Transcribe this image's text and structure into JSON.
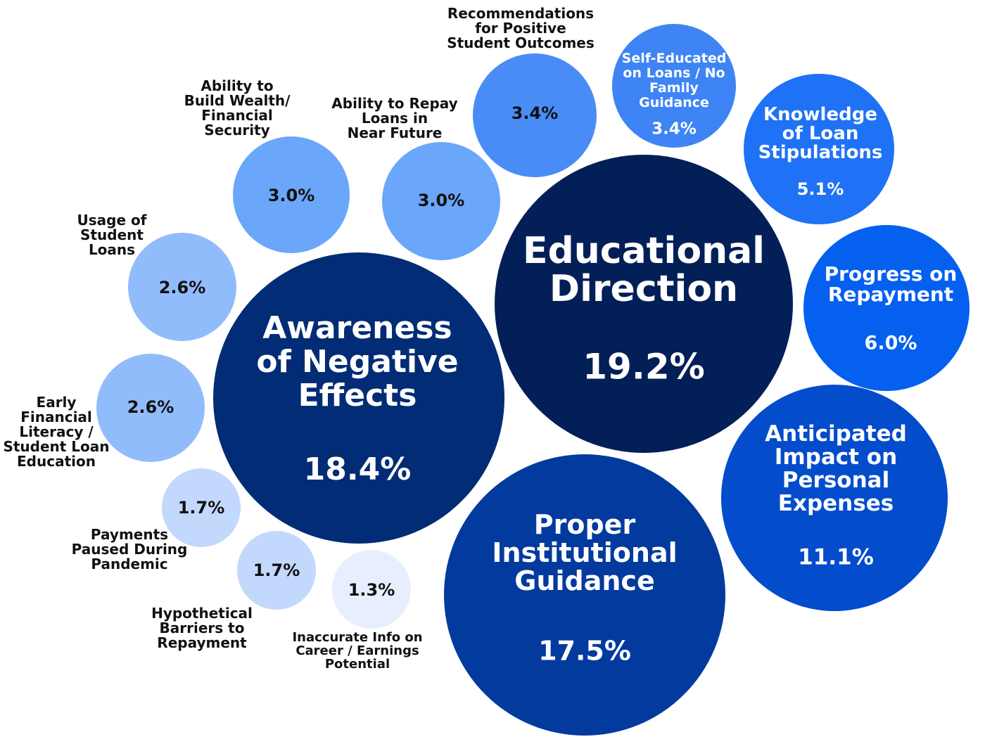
{
  "chart_data": {
    "type": "bubble",
    "title": "",
    "unit": "%",
    "bubbles": [
      {
        "label": "Educational Direction",
        "value": 19.2,
        "display": "19.2%",
        "color": "#021f57"
      },
      {
        "label": "Awareness of Negative Effects",
        "value": 18.4,
        "display": "18.4%",
        "color": "#022c75"
      },
      {
        "label": "Proper Institutional Guidance",
        "value": 17.5,
        "display": "17.5%",
        "color": "#023a9e"
      },
      {
        "label": "Anticipated Impact on Personal Expenses",
        "value": 11.1,
        "display": "11.1%",
        "color": "#034ccc"
      },
      {
        "label": "Progress on Repayment",
        "value": 6.0,
        "display": "6.0%",
        "color": "#0560ef"
      },
      {
        "label": "Knowledge of Loan Stipulations",
        "value": 5.1,
        "display": "5.1%",
        "color": "#1f72f5"
      },
      {
        "label": "Self-Educated on Loans / No Family Guidance",
        "value": 3.4,
        "display": "3.4%",
        "color": "#3f84f5"
      },
      {
        "label": "Recommendations for Positive Student Outcomes",
        "value": 3.4,
        "display": "3.4%",
        "color": "#4a8cf6"
      },
      {
        "label": "Ability to Repay Loans in Near Future",
        "value": 3.0,
        "display": "3.0%",
        "color": "#6aa6fa"
      },
      {
        "label": "Ability to Build Wealth/ Financial Security",
        "value": 3.0,
        "display": "3.0%",
        "color": "#6aa6fa"
      },
      {
        "label": "Usage of Student Loans",
        "value": 2.6,
        "display": "2.6%",
        "color": "#91bcfb"
      },
      {
        "label": "Early Financial Literacy / Student Loan Education",
        "value": 2.6,
        "display": "2.6%",
        "color": "#91bcfb"
      },
      {
        "label": "Payments Paused During Pandemic",
        "value": 1.7,
        "display": "1.7%",
        "color": "#c3d8fd"
      },
      {
        "label": "Hypothetical Barriers to Repayment",
        "value": 1.7,
        "display": "1.7%",
        "color": "#c3d8fd"
      },
      {
        "label": "Inaccurate Info on Career / Earnings Potential",
        "value": 1.3,
        "display": "1.3%",
        "color": "#e7effe"
      }
    ]
  }
}
